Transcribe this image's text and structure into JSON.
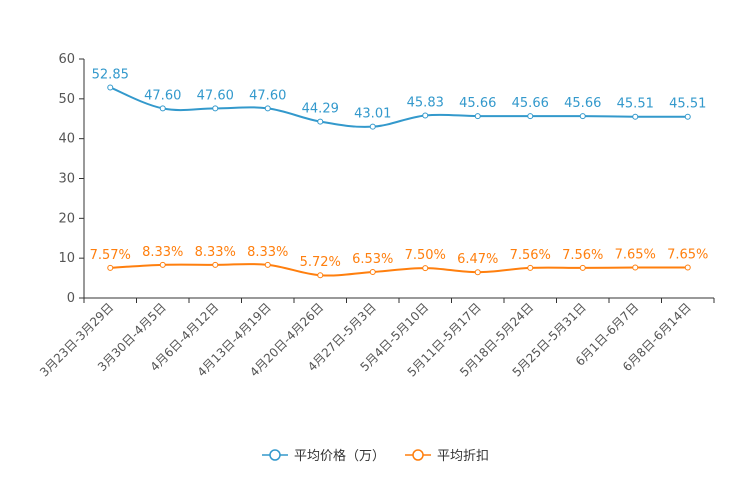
{
  "chart_data": {
    "type": "line",
    "categories": [
      "3月23日-3月29日",
      "3月30日-4月5日",
      "4月6日-4月12日",
      "4月13日-4月19日",
      "4月20日-4月26日",
      "4月27日-5月3日",
      "5月4日-5月10日",
      "5月11日-5月17日",
      "5月18日-5月24日",
      "5月25日-5月31日",
      "6月1日-6月7日",
      "6月8日-6月14日"
    ],
    "series": [
      {
        "name": "平均价格（万）",
        "color": "#3399cc",
        "values": [
          52.85,
          47.6,
          47.6,
          47.6,
          44.29,
          43.01,
          45.83,
          45.66,
          45.66,
          45.66,
          45.51,
          45.51
        ],
        "labels": [
          "52.85",
          "47.60",
          "47.60",
          "47.60",
          "44.29",
          "43.01",
          "45.83",
          "45.66",
          "45.66",
          "45.66",
          "45.51",
          "45.51"
        ]
      },
      {
        "name": "平均折扣",
        "color": "#ff7f0e",
        "values": [
          7.57,
          8.33,
          8.33,
          8.33,
          5.72,
          6.53,
          7.5,
          6.47,
          7.56,
          7.56,
          7.65,
          7.65
        ],
        "labels": [
          "7.57%",
          "8.33%",
          "8.33%",
          "8.33%",
          "5.72%",
          "6.53%",
          "7.50%",
          "6.47%",
          "7.56%",
          "7.56%",
          "7.65%",
          "7.65%"
        ]
      }
    ],
    "ylim": [
      0,
      60
    ],
    "yticks": [
      0,
      10,
      20,
      30,
      40,
      50,
      60
    ],
    "title": "",
    "xlabel": "",
    "ylabel": "",
    "legend": "bottom-center",
    "grid": false
  }
}
